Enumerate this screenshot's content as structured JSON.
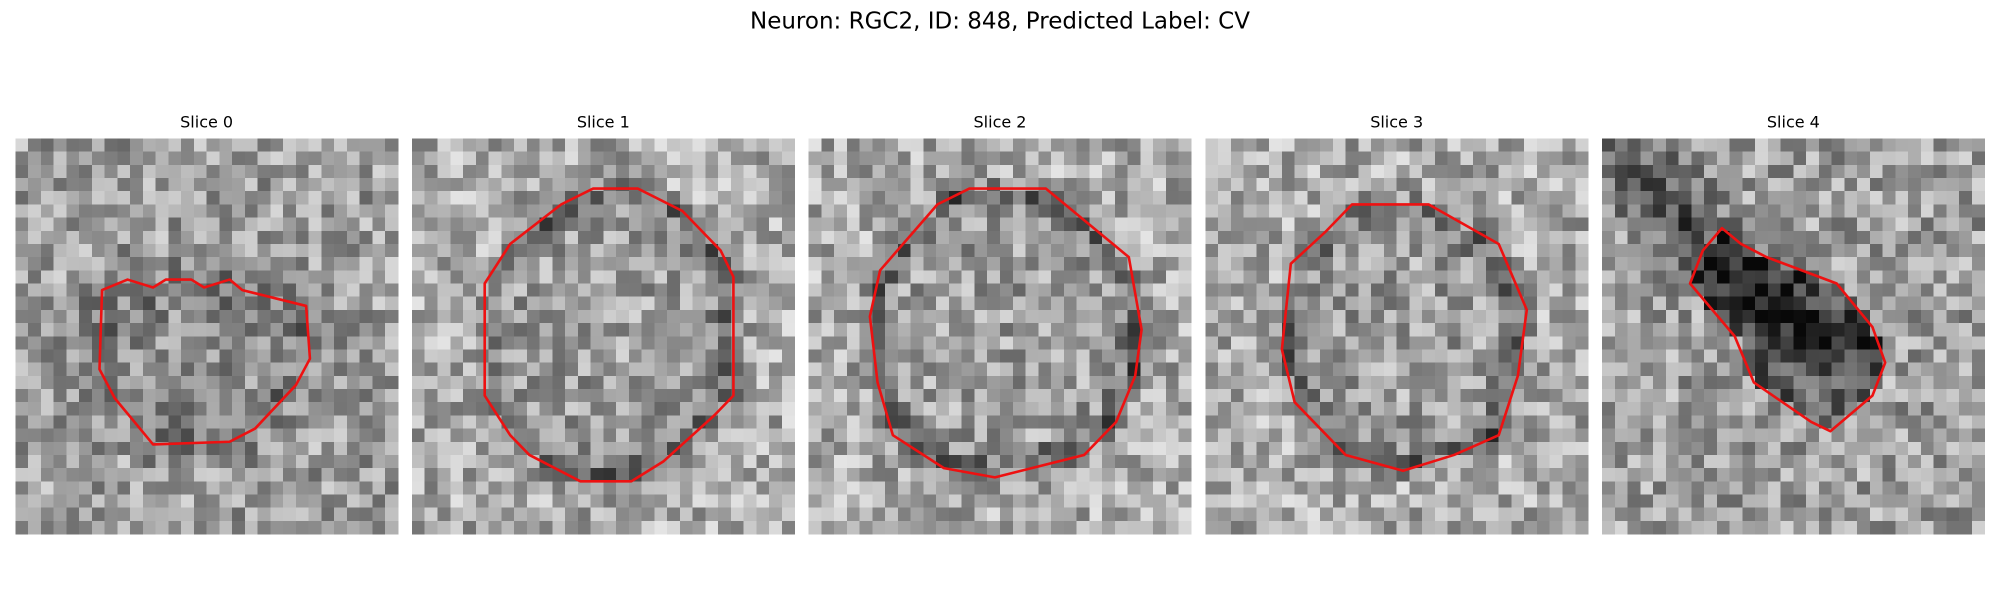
{
  "header": {
    "title": "Neuron: RGC2, ID: 848, Predicted Label: CV"
  },
  "panels": [
    {
      "title": "Slice 0"
    },
    {
      "title": "Slice 1"
    },
    {
      "title": "Slice 2"
    },
    {
      "title": "Slice 3"
    },
    {
      "title": "Slice 4"
    }
  ]
}
